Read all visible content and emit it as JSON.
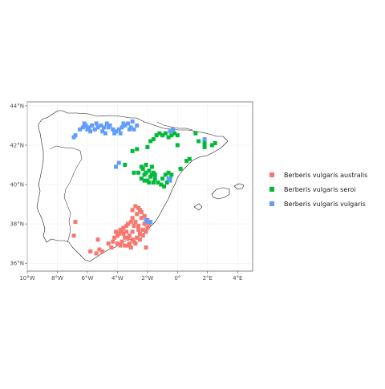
{
  "chart_data": {
    "type": "scatter",
    "title": "",
    "xlabel": "",
    "ylabel": "",
    "xlim": [
      -10,
      5
    ],
    "ylim": [
      35.6,
      44.2
    ],
    "x_ticks": [
      {
        "value": -10,
        "label": "10°W"
      },
      {
        "value": -8,
        "label": "8°W"
      },
      {
        "value": -6,
        "label": "6°W"
      },
      {
        "value": -4,
        "label": "4°W"
      },
      {
        "value": -2,
        "label": "2°W"
      },
      {
        "value": 0,
        "label": "0°"
      },
      {
        "value": 2,
        "label": "2°E"
      },
      {
        "value": 4,
        "label": "4°E"
      }
    ],
    "y_ticks": [
      {
        "value": 36,
        "label": "36°N"
      },
      {
        "value": 38,
        "label": "38°N"
      },
      {
        "value": 40,
        "label": "40°N"
      },
      {
        "value": 42,
        "label": "42°N"
      },
      {
        "value": 44,
        "label": "44°N"
      }
    ],
    "grid": true,
    "legend_position": "right",
    "series": [
      {
        "name": "Berberis vulgaris australis",
        "color": "#F8766D",
        "points": [
          [
            -3.8,
            37.7
          ],
          [
            -3.6,
            37.8
          ],
          [
            -3.4,
            37.6
          ],
          [
            -3.2,
            37.4
          ],
          [
            -3.0,
            37.2
          ],
          [
            -3.5,
            37.3
          ],
          [
            -3.7,
            37.1
          ],
          [
            -3.9,
            37.5
          ],
          [
            -4.1,
            37.6
          ],
          [
            -4.2,
            37.3
          ],
          [
            -4.0,
            37.0
          ],
          [
            -3.8,
            36.9
          ],
          [
            -3.5,
            36.9
          ],
          [
            -3.2,
            37.0
          ],
          [
            -2.9,
            37.1
          ],
          [
            -2.7,
            37.3
          ],
          [
            -2.5,
            37.5
          ],
          [
            -2.3,
            37.7
          ],
          [
            -2.6,
            37.9
          ],
          [
            -2.8,
            38.1
          ],
          [
            -3.0,
            38.3
          ],
          [
            -2.7,
            38.5
          ],
          [
            -2.5,
            38.7
          ],
          [
            -2.8,
            38.9
          ],
          [
            -2.6,
            38.8
          ],
          [
            -3.0,
            38.7
          ],
          [
            -2.4,
            38.3
          ],
          [
            -2.2,
            38.0
          ],
          [
            -2.0,
            37.8
          ],
          [
            -2.3,
            37.4
          ],
          [
            -2.5,
            37.2
          ],
          [
            -2.8,
            37.0
          ],
          [
            -3.1,
            36.8
          ],
          [
            -4.4,
            36.8
          ],
          [
            -4.6,
            37.0
          ],
          [
            -4.3,
            37.1
          ],
          [
            -5.2,
            36.7
          ],
          [
            -5.4,
            36.5
          ],
          [
            -5.0,
            36.6
          ],
          [
            -5.8,
            36.6
          ],
          [
            -5.3,
            37.2
          ],
          [
            -6.8,
            38.1
          ],
          [
            -6.9,
            37.4
          ],
          [
            -3.3,
            38.0
          ],
          [
            -3.1,
            38.1
          ],
          [
            -2.9,
            37.9
          ],
          [
            -3.4,
            37.9
          ],
          [
            -3.6,
            37.5
          ],
          [
            -3.3,
            37.3
          ],
          [
            -2.1,
            37.6
          ],
          [
            -2.4,
            38.6
          ],
          [
            -2.2,
            38.4
          ],
          [
            -2.0,
            38.2
          ],
          [
            -1.9,
            38.0
          ],
          [
            -2.1,
            36.8
          ],
          [
            -2.6,
            37.7
          ],
          [
            -3.7,
            37.6
          ],
          [
            -3.0,
            37.6
          ],
          [
            -3.3,
            36.9
          ],
          [
            -4.0,
            37.4
          ]
        ]
      },
      {
        "name": "Berberis vulgaris seroi",
        "color": "#00BA38",
        "points": [
          [
            -2.0,
            40.2
          ],
          [
            -1.8,
            40.4
          ],
          [
            -1.6,
            40.6
          ],
          [
            -2.2,
            40.5
          ],
          [
            -2.4,
            40.3
          ],
          [
            -1.9,
            40.7
          ],
          [
            -1.7,
            40.9
          ],
          [
            -2.1,
            41.0
          ],
          [
            -2.3,
            40.8
          ],
          [
            -1.5,
            40.3
          ],
          [
            -1.3,
            40.1
          ],
          [
            -1.1,
            40.0
          ],
          [
            -0.9,
            39.9
          ],
          [
            -0.7,
            40.1
          ],
          [
            -0.5,
            40.3
          ],
          [
            -1.0,
            40.3
          ],
          [
            -0.8,
            40.5
          ],
          [
            -0.6,
            40.6
          ],
          [
            -0.4,
            40.5
          ],
          [
            -2.0,
            41.9
          ],
          [
            -1.8,
            42.2
          ],
          [
            -1.6,
            42.3
          ],
          [
            -1.4,
            42.5
          ],
          [
            -1.2,
            42.6
          ],
          [
            -1.0,
            42.5
          ],
          [
            -0.8,
            42.6
          ],
          [
            -0.6,
            42.4
          ],
          [
            -0.4,
            42.5
          ],
          [
            -0.2,
            42.6
          ],
          [
            0.0,
            42.5
          ],
          [
            0.0,
            42.0
          ],
          [
            0.2,
            40.8
          ],
          [
            0.8,
            41.3
          ],
          [
            0.6,
            41.2
          ],
          [
            1.2,
            42.6
          ],
          [
            1.4,
            42.2
          ],
          [
            1.8,
            42.1
          ],
          [
            2.3,
            42.0
          ],
          [
            2.5,
            42.1
          ],
          [
            1.8,
            41.9
          ],
          [
            -1.9,
            40.1
          ],
          [
            -2.1,
            40.6
          ],
          [
            -1.7,
            40.5
          ],
          [
            -2.6,
            40.6
          ],
          [
            -2.7,
            41.8
          ],
          [
            -3.0,
            41.7
          ],
          [
            -3.5,
            41.0
          ],
          [
            -2.9,
            40.6
          ],
          [
            -2.2,
            40.2
          ],
          [
            -1.5,
            40.5
          ],
          [
            -2.4,
            40.9
          ],
          [
            -1.6,
            40.1
          ]
        ]
      },
      {
        "name": "Berberis vulgaris vulgaris",
        "color": "#619CFF",
        "points": [
          [
            -6.5,
            42.8
          ],
          [
            -6.3,
            42.9
          ],
          [
            -6.1,
            43.0
          ],
          [
            -5.9,
            42.9
          ],
          [
            -5.7,
            43.0
          ],
          [
            -5.5,
            42.8
          ],
          [
            -5.3,
            42.9
          ],
          [
            -5.1,
            43.0
          ],
          [
            -4.9,
            42.9
          ],
          [
            -4.7,
            43.1
          ],
          [
            -4.5,
            43.0
          ],
          [
            -4.3,
            42.8
          ],
          [
            -4.1,
            42.7
          ],
          [
            -3.9,
            42.8
          ],
          [
            -3.7,
            42.9
          ],
          [
            -3.5,
            43.0
          ],
          [
            -3.3,
            43.1
          ],
          [
            -3.1,
            42.9
          ],
          [
            -2.9,
            42.8
          ],
          [
            -2.7,
            43.0
          ],
          [
            -6.9,
            42.4
          ],
          [
            -6.8,
            42.5
          ],
          [
            -4.8,
            42.6
          ],
          [
            -5.0,
            42.7
          ],
          [
            -3.6,
            43.1
          ],
          [
            -3.0,
            43.2
          ],
          [
            -0.3,
            42.8
          ],
          [
            -0.5,
            42.7
          ],
          [
            1.8,
            42.3
          ],
          [
            -3.9,
            41.1
          ],
          [
            -4.1,
            40.9
          ],
          [
            -2.1,
            38.2
          ],
          [
            -2.0,
            38.1
          ],
          [
            -1.8,
            38.1
          ],
          [
            -0.5,
            40.2
          ],
          [
            -0.6,
            40.3
          ],
          [
            -5.8,
            42.7
          ],
          [
            -6.0,
            42.8
          ],
          [
            -4.6,
            42.9
          ],
          [
            -4.2,
            42.6
          ],
          [
            -3.8,
            42.6
          ],
          [
            -5.4,
            43.1
          ],
          [
            -6.2,
            43.1
          ],
          [
            -3.2,
            42.8
          ]
        ]
      }
    ]
  }
}
